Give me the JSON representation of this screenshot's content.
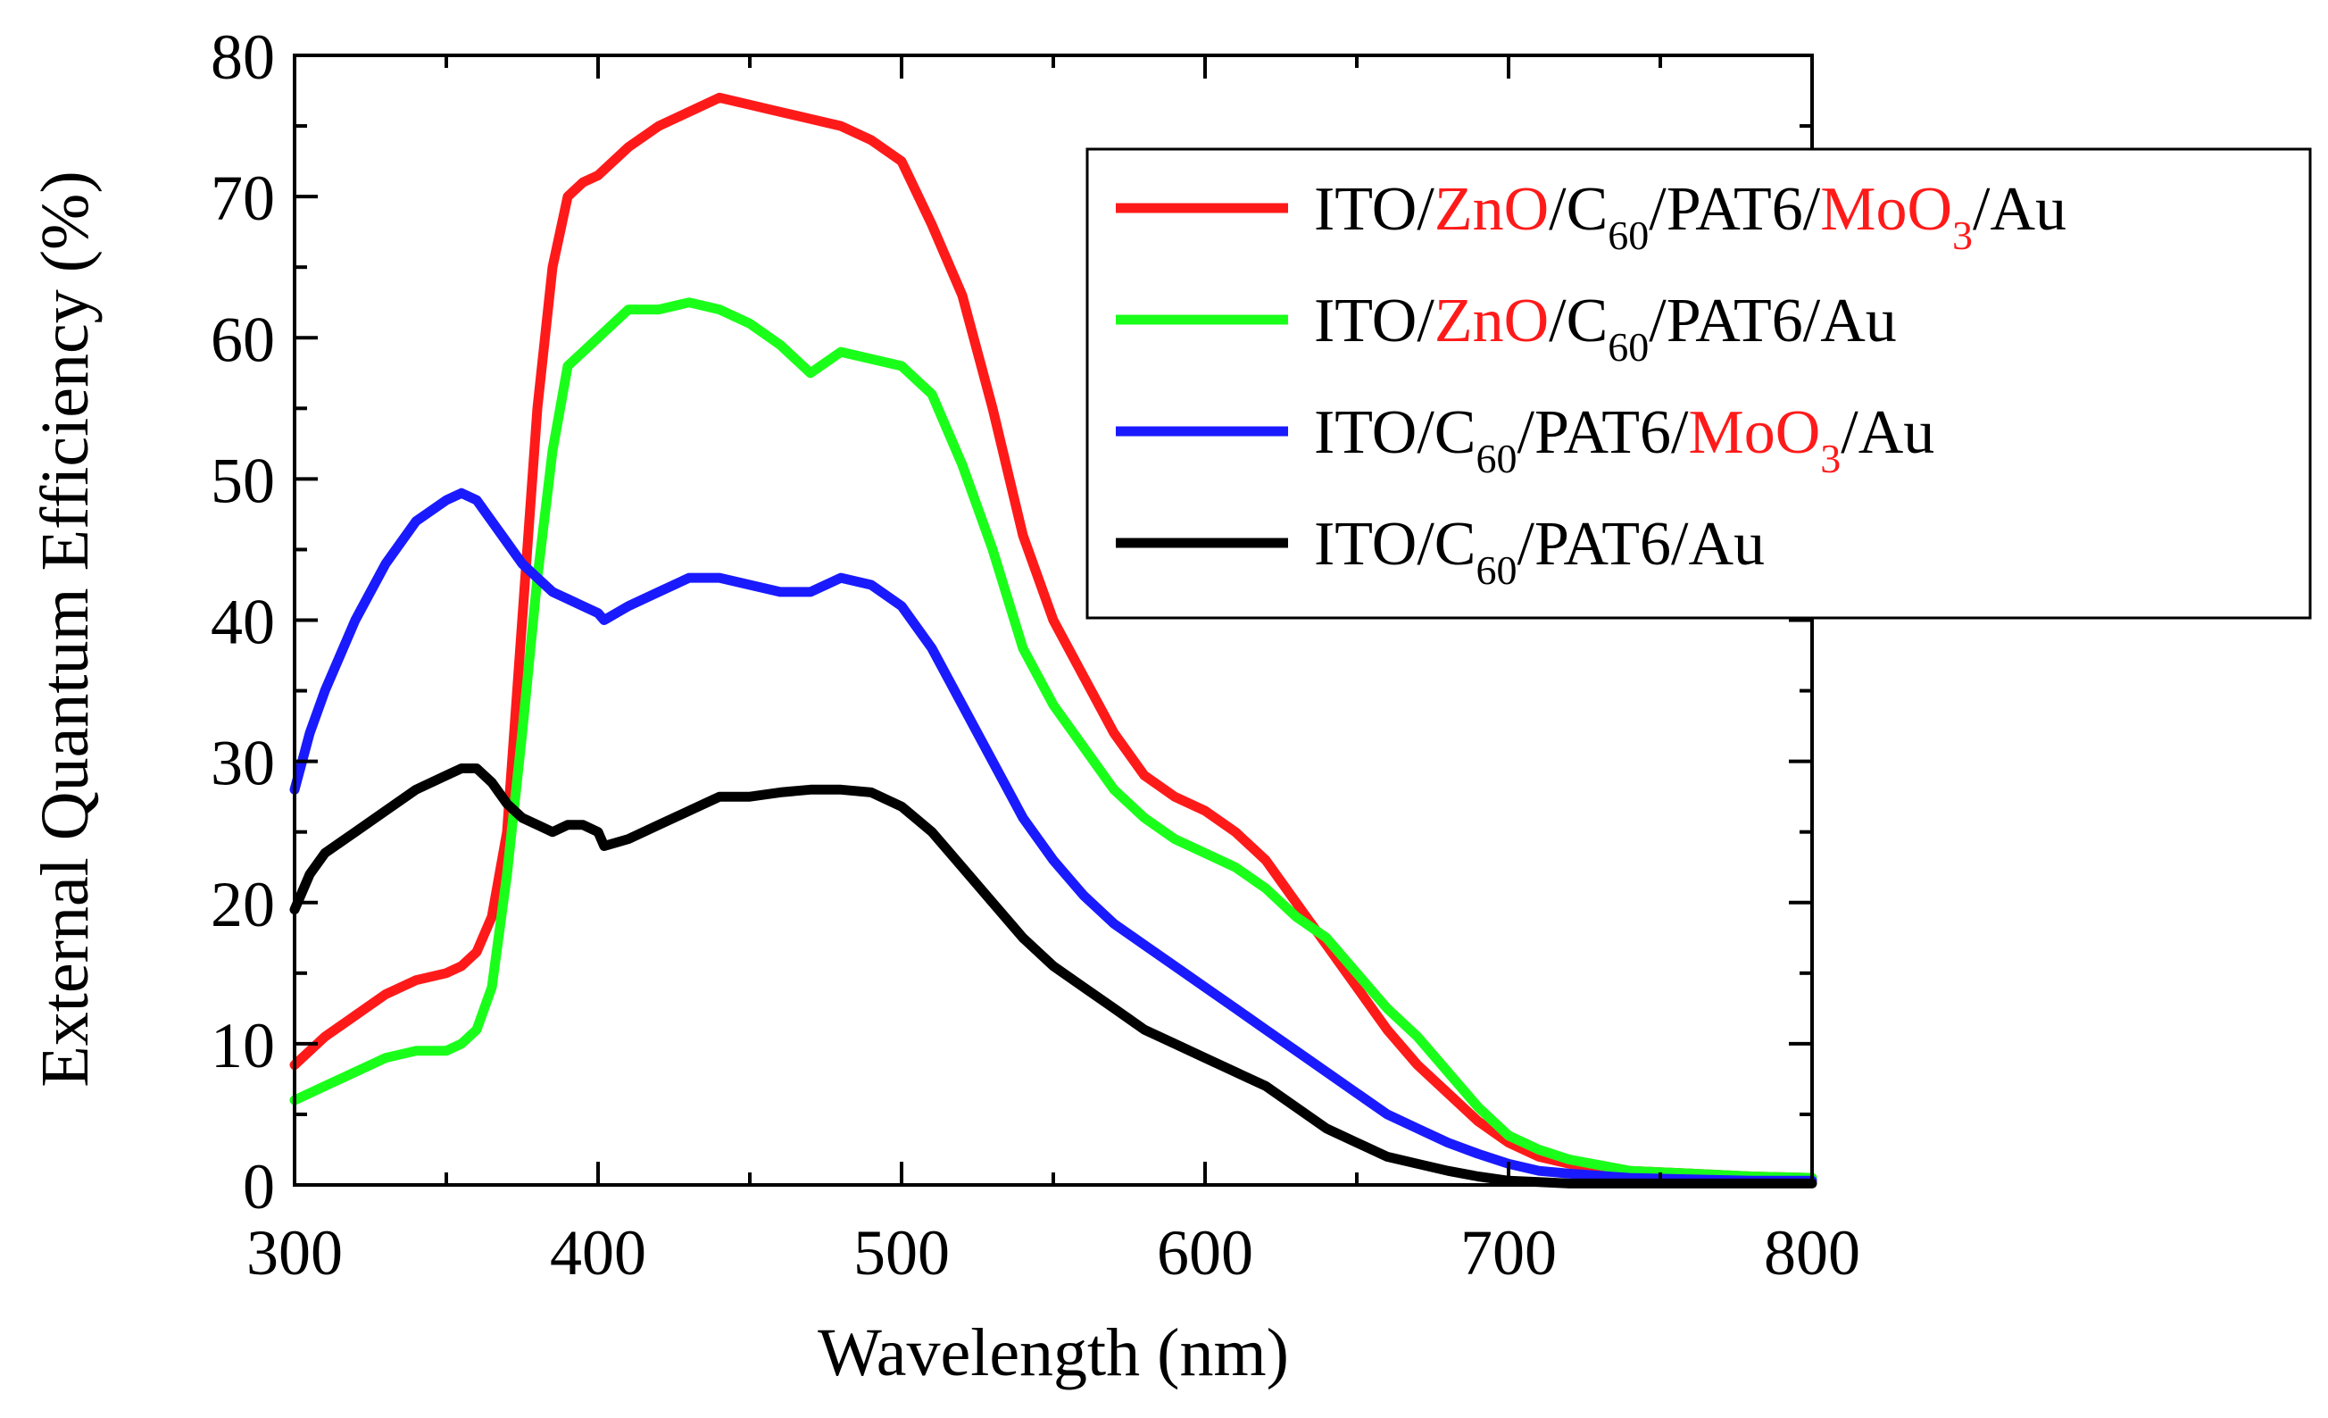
{
  "colors": {
    "red": "#ff1a1a",
    "green": "#1aff1a",
    "blue": "#1a1aff",
    "black": "#000000",
    "highlight": "#ff1a1a"
  },
  "chart_data": {
    "type": "line",
    "xlabel": "Wavelength (nm)",
    "ylabel": "External Quantum Efficiency (%)",
    "xlim": [
      300,
      800
    ],
    "ylim": [
      0,
      80
    ],
    "xticks": [
      "300",
      "400",
      "500",
      "600",
      "700",
      "800"
    ],
    "yticks": [
      "0",
      "10",
      "20",
      "30",
      "40",
      "50",
      "60",
      "70",
      "80"
    ],
    "legend_position": "top-right",
    "series": [
      {
        "name": "ITO/ZnO/C60/PAT6/MoO3/Au",
        "color": "#ff1a1a",
        "legend_parts": [
          {
            "t": "ITO/",
            "style": "normal"
          },
          {
            "t": "ZnO",
            "style": "highlight"
          },
          {
            "t": "/C",
            "style": "normal"
          },
          {
            "t": "60",
            "style": "sub"
          },
          {
            "t": "/PAT6/",
            "style": "normal"
          },
          {
            "t": "MoO",
            "style": "highlight"
          },
          {
            "t": "3",
            "style": "highlight-sub"
          },
          {
            "t": "/Au",
            "style": "normal"
          }
        ],
        "x": [
          300,
          310,
          320,
          330,
          340,
          350,
          355,
          360,
          365,
          370,
          375,
          380,
          385,
          390,
          395,
          400,
          410,
          420,
          430,
          440,
          450,
          460,
          470,
          480,
          490,
          500,
          510,
          520,
          530,
          540,
          550,
          560,
          570,
          580,
          590,
          600,
          610,
          620,
          630,
          640,
          650,
          660,
          670,
          680,
          690,
          700,
          710,
          720,
          740,
          760,
          780,
          800
        ],
        "y": [
          8.5,
          10.5,
          12,
          13.5,
          14.5,
          15,
          15.5,
          16.5,
          19,
          25,
          40,
          55,
          65,
          70,
          71,
          71.5,
          73.5,
          75,
          76,
          77,
          76.5,
          76,
          75.5,
          75,
          74,
          72.5,
          68,
          63,
          55,
          46,
          40,
          36,
          32,
          29,
          27.5,
          26.5,
          25,
          23,
          20,
          17,
          14,
          11,
          8.5,
          6.5,
          4.5,
          3,
          2,
          1.5,
          1,
          0.8,
          0.6,
          0.5
        ]
      },
      {
        "name": "ITO/ZnO/C60/PAT6/Au",
        "color": "#1aff1a",
        "legend_parts": [
          {
            "t": "ITO/",
            "style": "normal"
          },
          {
            "t": "ZnO",
            "style": "highlight"
          },
          {
            "t": "/C",
            "style": "normal"
          },
          {
            "t": "60",
            "style": "sub"
          },
          {
            "t": "/PAT6/Au",
            "style": "normal"
          }
        ],
        "x": [
          300,
          310,
          320,
          330,
          340,
          350,
          355,
          360,
          365,
          370,
          375,
          380,
          385,
          390,
          395,
          400,
          410,
          420,
          430,
          440,
          450,
          460,
          470,
          480,
          490,
          500,
          510,
          520,
          530,
          540,
          550,
          560,
          570,
          580,
          590,
          600,
          610,
          620,
          630,
          640,
          650,
          660,
          670,
          680,
          690,
          700,
          710,
          720,
          740,
          760,
          780,
          800
        ],
        "y": [
          6,
          7,
          8,
          9,
          9.5,
          9.5,
          10,
          11,
          14,
          22,
          32,
          43,
          52,
          58,
          59,
          60,
          62,
          62,
          62.5,
          62,
          61,
          59.5,
          57.5,
          59,
          58.5,
          58,
          56,
          51,
          45,
          38,
          34,
          31,
          28,
          26,
          24.5,
          23.5,
          22.5,
          21,
          19,
          17.5,
          15,
          12.5,
          10.5,
          8,
          5.5,
          3.5,
          2.5,
          1.8,
          1,
          0.8,
          0.6,
          0.5
        ]
      },
      {
        "name": "ITO/C60/PAT6/MoO3/Au",
        "color": "#1a1aff",
        "legend_parts": [
          {
            "t": "ITO/C",
            "style": "normal"
          },
          {
            "t": "60",
            "style": "sub"
          },
          {
            "t": "/PAT6/",
            "style": "normal"
          },
          {
            "t": "MoO",
            "style": "highlight"
          },
          {
            "t": "3",
            "style": "highlight-sub"
          },
          {
            "t": "/Au",
            "style": "normal"
          }
        ],
        "x": [
          300,
          305,
          310,
          320,
          330,
          340,
          350,
          355,
          360,
          365,
          370,
          375,
          380,
          385,
          390,
          395,
          400,
          402,
          410,
          420,
          430,
          440,
          450,
          460,
          470,
          480,
          490,
          500,
          510,
          520,
          530,
          540,
          550,
          560,
          570,
          580,
          590,
          600,
          610,
          620,
          630,
          640,
          650,
          660,
          670,
          680,
          690,
          700,
          710,
          720,
          740,
          760,
          780,
          800
        ],
        "y": [
          28,
          32,
          35,
          40,
          44,
          47,
          48.5,
          49,
          48.5,
          47,
          45.5,
          44,
          43,
          42,
          41.5,
          41,
          40.5,
          40,
          41,
          42,
          43,
          43,
          42.5,
          42,
          42,
          43,
          42.5,
          41,
          38,
          34,
          30,
          26,
          23,
          20.5,
          18.5,
          17,
          15.5,
          14,
          12.5,
          11,
          9.5,
          8,
          6.5,
          5,
          4,
          3,
          2.2,
          1.5,
          1,
          0.8,
          0.5,
          0.4,
          0.3,
          0.3
        ]
      },
      {
        "name": "ITO/C60/PAT6/Au",
        "color": "#000000",
        "legend_parts": [
          {
            "t": "ITO/C",
            "style": "normal"
          },
          {
            "t": "60",
            "style": "sub"
          },
          {
            "t": "/PAT6/Au",
            "style": "normal"
          }
        ],
        "x": [
          300,
          305,
          310,
          320,
          330,
          340,
          350,
          355,
          360,
          365,
          370,
          375,
          380,
          385,
          390,
          395,
          400,
          402,
          410,
          420,
          430,
          440,
          450,
          460,
          470,
          480,
          490,
          500,
          510,
          520,
          530,
          540,
          550,
          560,
          570,
          580,
          590,
          600,
          610,
          620,
          630,
          640,
          650,
          660,
          670,
          680,
          690,
          700,
          710,
          720,
          740,
          760,
          780,
          800
        ],
        "y": [
          19.5,
          22,
          23.5,
          25,
          26.5,
          28,
          29,
          29.5,
          29.5,
          28.5,
          27,
          26,
          25.5,
          25,
          25.5,
          25.5,
          25,
          24,
          24.5,
          25.5,
          26.5,
          27.5,
          27.5,
          27.8,
          28,
          28,
          27.8,
          26.8,
          25,
          22.5,
          20,
          17.5,
          15.5,
          14,
          12.5,
          11,
          10,
          9,
          8,
          7,
          5.5,
          4,
          3,
          2,
          1.5,
          1,
          0.6,
          0.3,
          0.2,
          0.1,
          0.1,
          0.1,
          0.1,
          0.1
        ]
      }
    ]
  }
}
